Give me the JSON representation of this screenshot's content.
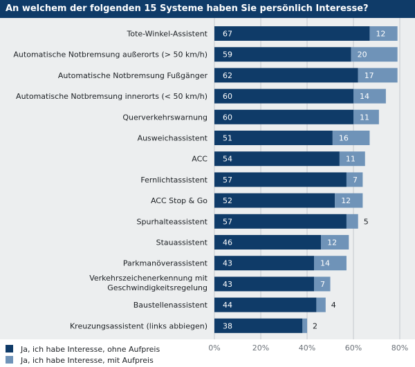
{
  "header": {
    "title": "An welchem der folgenden 15 Systeme haben Sie persönlich Interesse?"
  },
  "colors": {
    "header_bg": "#0f3b68",
    "series1": "#0f3b68",
    "series2": "#6f93b8",
    "plot_bg": "#eceeef"
  },
  "chart_data": {
    "type": "bar",
    "orientation": "horizontal",
    "stacked": true,
    "title": "An welchem der folgenden 15 Systeme haben Sie persönlich Interesse?",
    "categories": [
      "Tote-Winkel-Assistent",
      "Automatische Notbremsung außerorts (> 50 km/h)",
      "Automatische Notbremsung Fußgänger",
      "Automatische Notbremsung innerorts (< 50 km/h)",
      "Querverkehrswarnung",
      "Ausweichassistent",
      "ACC",
      "Fernlichtassistent",
      "ACC Stop & Go",
      "Spurhalteassistent",
      "Stauassistent",
      "Parkmanöverassistent",
      "Verkehrszeichenerkennung mit Geschwindigkeitsregelung",
      "Baustellenassistent",
      "Kreuzungsassistent (links abbiegen)"
    ],
    "series": [
      {
        "name": "Ja, ich habe Interesse, ohne Aufpreis",
        "values": [
          67,
          59,
          62,
          60,
          60,
          51,
          54,
          57,
          52,
          57,
          46,
          43,
          43,
          44,
          38
        ]
      },
      {
        "name": "Ja, ich habe Interesse, mit Aufpreis",
        "values": [
          12,
          20,
          17,
          14,
          11,
          16,
          11,
          7,
          12,
          5,
          12,
          14,
          7,
          4,
          2
        ]
      }
    ],
    "xlim": [
      0,
      80
    ],
    "xticks": [
      "0%",
      "20%",
      "40%",
      "60%",
      "80%"
    ],
    "grid": true,
    "legend_position": "bottom-left"
  }
}
